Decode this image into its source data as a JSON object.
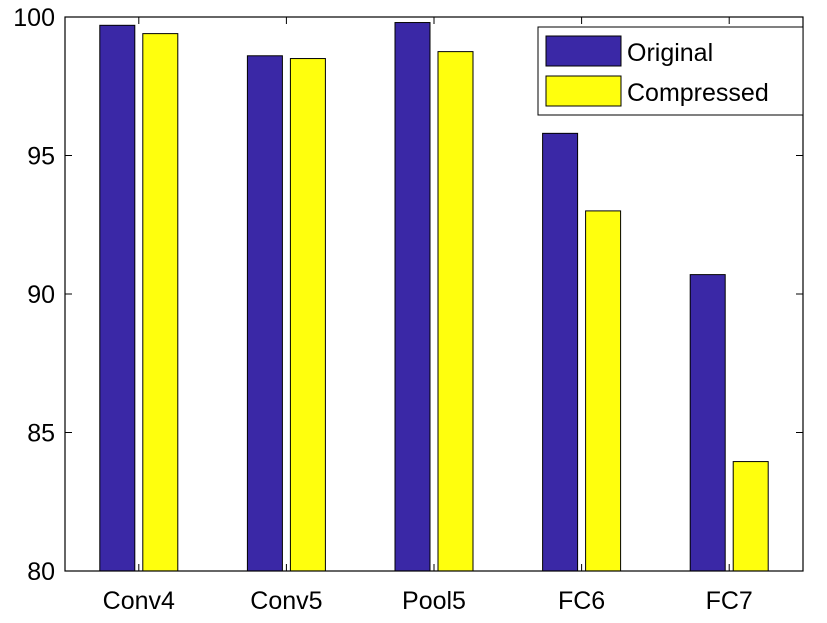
{
  "chart_data": {
    "type": "bar",
    "title": "",
    "xlabel": "",
    "ylabel": "",
    "categories": [
      "Conv4",
      "Conv5",
      "Pool5",
      "FC6",
      "FC7"
    ],
    "series": [
      {
        "name": "Original",
        "color": "#3a28a6",
        "values": [
          99.7,
          98.6,
          99.8,
          95.8,
          90.7
        ]
      },
      {
        "name": "Compressed",
        "color": "#ffff0d",
        "values": [
          99.4,
          98.5,
          98.75,
          93.0,
          83.95
        ]
      }
    ],
    "ylim": [
      80,
      100
    ],
    "yticks": [
      80,
      85,
      90,
      95,
      100
    ],
    "grid": false,
    "legend_position": "top-right"
  }
}
